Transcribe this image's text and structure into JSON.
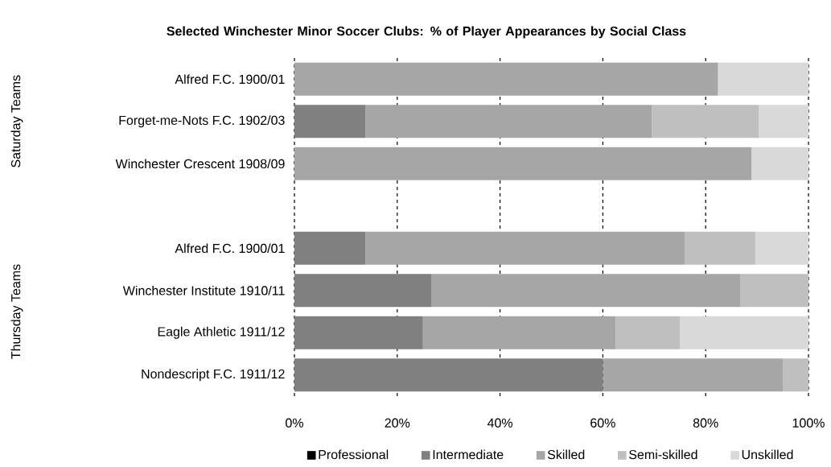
{
  "chart_data": {
    "type": "bar",
    "orientation": "horizontal",
    "stacked": true,
    "title": "Selected Winchester Minor Soccer Clubs: % of Player Appearances by Social Class",
    "categories": [
      "Alfred F.C. 1900/01",
      "Forget-me-Nots F.C. 1902/03",
      "Winchester Crescent 1908/09",
      null,
      "Alfred F.C. 1900/01",
      "Winchester Institute 1910/11",
      "Eagle Athletic 1911/12",
      "Nondescript F.C. 1911/12"
    ],
    "series": [
      {
        "name": "Professional",
        "color": "#000000",
        "values": [
          0,
          0,
          0,
          null,
          0,
          0,
          0,
          0
        ]
      },
      {
        "name": "Intermediate",
        "color": "#808080",
        "values": [
          0,
          13.8,
          0,
          null,
          13.8,
          26.7,
          25,
          60
        ]
      },
      {
        "name": "Skilled",
        "color": "#a6a6a6",
        "values": [
          82.4,
          55.7,
          88.9,
          null,
          62.1,
          60,
          37.5,
          35
        ]
      },
      {
        "name": "Semi-skilled",
        "color": "#bfbfbf",
        "values": [
          0,
          20.8,
          0,
          null,
          13.8,
          13.3,
          12.5,
          5
        ]
      },
      {
        "name": "Unskilled",
        "color": "#d9d9d9",
        "values": [
          17.6,
          9.7,
          11.1,
          null,
          10.3,
          0,
          25,
          0
        ]
      }
    ],
    "xlim": [
      0,
      100
    ],
    "xticks": [
      {
        "value": 0,
        "label": "0%"
      },
      {
        "value": 20,
        "label": "20%"
      },
      {
        "value": 40,
        "label": "40%"
      },
      {
        "value": 60,
        "label": "60%"
      },
      {
        "value": 80,
        "label": "80%"
      },
      {
        "value": 100,
        "label": "100%"
      }
    ],
    "grid": "x",
    "line_style": "dashed",
    "legend": "bottom",
    "annotations": [
      "Saturday Teams",
      "Thursday Teams"
    ]
  }
}
